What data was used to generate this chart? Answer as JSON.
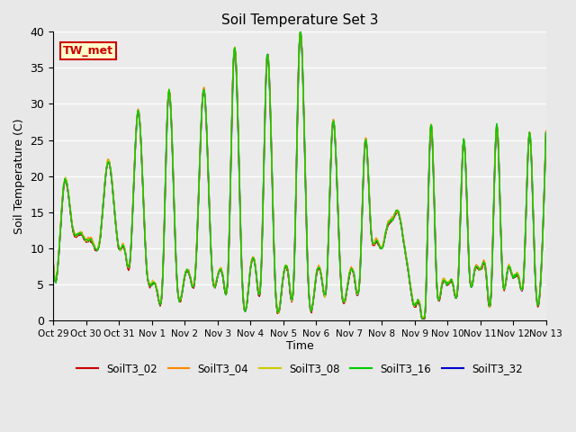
{
  "title": "Soil Temperature Set 3",
  "xlabel": "Time",
  "ylabel": "Soil Temperature (C)",
  "ylim": [
    0,
    40
  ],
  "figbg_color": "#e8e8e8",
  "plot_bg_color": "#ebebeb",
  "annotation_text": "TW_met",
  "annotation_color": "#cc0000",
  "annotation_bg": "#ffffcc",
  "annotation_border": "#cc0000",
  "series_order": [
    "SoilT3_32",
    "SoilT3_02",
    "SoilT3_04",
    "SoilT3_08",
    "SoilT3_16"
  ],
  "legend_order": [
    "SoilT3_02",
    "SoilT3_04",
    "SoilT3_08",
    "SoilT3_16",
    "SoilT3_32"
  ],
  "series": {
    "SoilT3_02": {
      "color": "#cc0000",
      "lw": 1.0
    },
    "SoilT3_04": {
      "color": "#ff8800",
      "lw": 1.0
    },
    "SoilT3_08": {
      "color": "#cccc00",
      "lw": 1.0
    },
    "SoilT3_16": {
      "color": "#00cc00",
      "lw": 1.0
    },
    "SoilT3_32": {
      "color": "#0000cc",
      "lw": 1.2
    }
  },
  "xtick_labels": [
    "Oct 29",
    "Oct 30",
    "Oct 31",
    "Nov 1",
    "Nov 2",
    "Nov 3",
    "Nov 4",
    "Nov 5",
    "Nov 6",
    "Nov 7",
    "Nov 8",
    "Nov 9",
    "Nov 10",
    "Nov 11",
    "Nov 12",
    "Nov 13"
  ],
  "xtick_positions": [
    0,
    24,
    48,
    72,
    96,
    120,
    144,
    168,
    192,
    216,
    240,
    264,
    288,
    312,
    336,
    360
  ],
  "ctrl_t": [
    0,
    4,
    8,
    14,
    20,
    24,
    28,
    34,
    40,
    48,
    52,
    56,
    62,
    68,
    72,
    76,
    80,
    84,
    90,
    96,
    100,
    104,
    110,
    116,
    120,
    124,
    128,
    132,
    138,
    144,
    148,
    152,
    156,
    162,
    168,
    172,
    176,
    180,
    186,
    192,
    196,
    200,
    204,
    210,
    216,
    220,
    224,
    228,
    232,
    236,
    240,
    244,
    248,
    252,
    256,
    260,
    264,
    268,
    272,
    276,
    280,
    284,
    288,
    292,
    296,
    300,
    304,
    308,
    312,
    316,
    320,
    324,
    328,
    332,
    336,
    340,
    344,
    348,
    352,
    356,
    360
  ],
  "ctrl_v": [
    8,
    9,
    19,
    13,
    12,
    11,
    11,
    11,
    22,
    10,
    10,
    8,
    29,
    8,
    5,
    4,
    6,
    31,
    7,
    6,
    6,
    7,
    32,
    7,
    6,
    6,
    8,
    37,
    6,
    7,
    7,
    7,
    36,
    6,
    6,
    6,
    7,
    39,
    7,
    6,
    6,
    6,
    27,
    6,
    6,
    6,
    6,
    25,
    13,
    11,
    10,
    13,
    14,
    15,
    11,
    6,
    2,
    2,
    2,
    27,
    6,
    5,
    5,
    5,
    6,
    25,
    7,
    7,
    7,
    7,
    4,
    27,
    7,
    7,
    6,
    6,
    7,
    26,
    7,
    5,
    26
  ],
  "n_points": 720
}
